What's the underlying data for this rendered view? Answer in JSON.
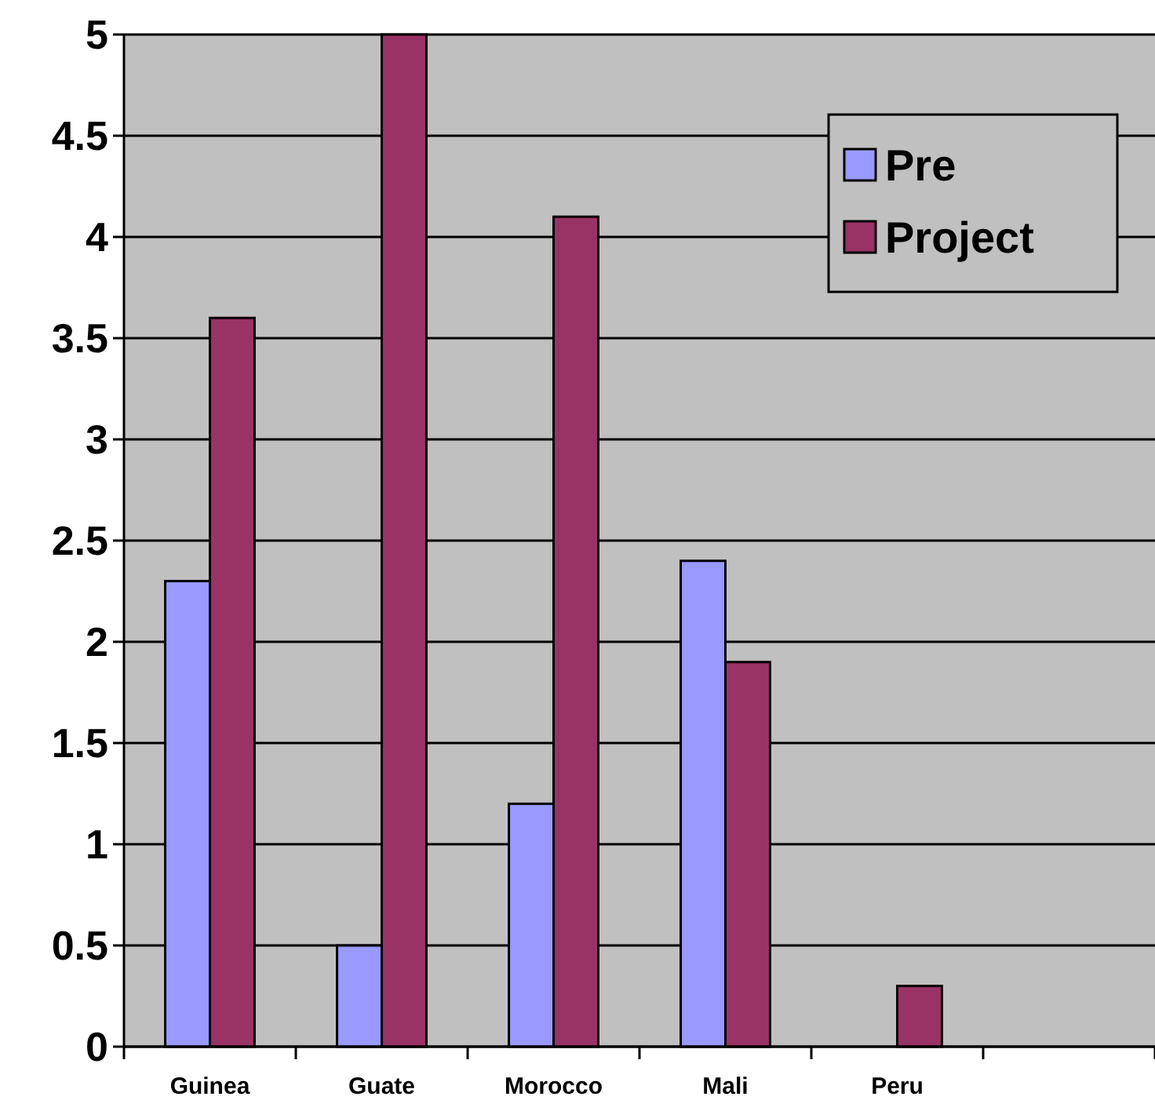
{
  "chart_data": {
    "type": "bar",
    "categories": [
      "Guinea",
      "Guate",
      "Morocco",
      "Mali",
      "Peru",
      null
    ],
    "series": [
      {
        "name": "Pre",
        "color": "#9999ff",
        "values": [
          2.3,
          0.5,
          1.2,
          2.4,
          0,
          null
        ]
      },
      {
        "name": "Project",
        "color": "#993366",
        "values": [
          3.6,
          5.0,
          4.1,
          1.9,
          0.3,
          null
        ]
      }
    ],
    "ylim": [
      0,
      5
    ],
    "yticks": [
      0,
      0.5,
      1,
      1.5,
      2,
      2.5,
      3,
      3.5,
      4,
      4.5,
      5
    ],
    "grid": "y",
    "legend": "top right"
  }
}
